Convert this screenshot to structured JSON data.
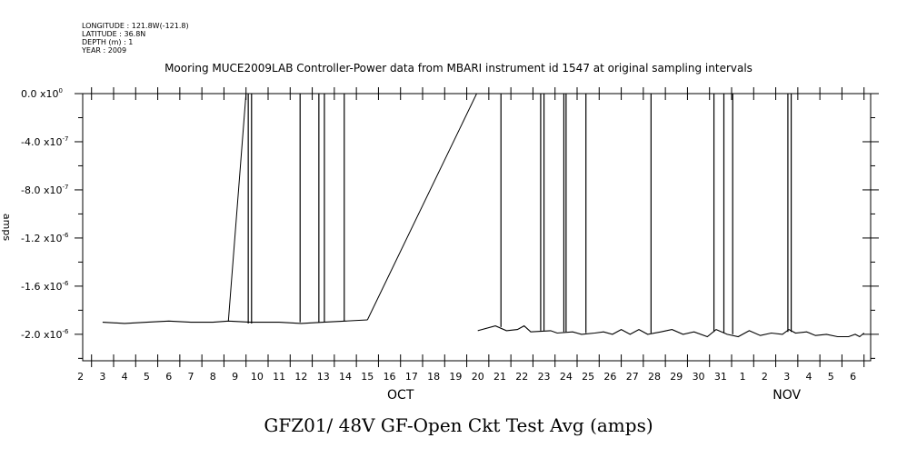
{
  "metadata": {
    "longitude": "LONGITUDE : 121.8W(-121.8)",
    "latitude": "LATITUDE : 36.8N",
    "depth": "DEPTH (m) : 1",
    "year": "YEAR : 2009"
  },
  "chart_data": {
    "type": "line",
    "title": "Mooring MUCE2009LAB Controller-Power data from MBARI instrument id 1547 at original sampling intervals",
    "xlabel": "GFZ01/ 48V GF-Open Ckt Test Avg (amps)",
    "ylabel": "amps",
    "x_tick_labels": [
      "2",
      "3",
      "4",
      "5",
      "6",
      "7",
      "8",
      "9",
      "10",
      "11",
      "12",
      "13",
      "14",
      "15",
      "16",
      "17",
      "18",
      "19",
      "20",
      "21",
      "22",
      "23",
      "24",
      "25",
      "26",
      "27",
      "28",
      "29",
      "30",
      "31",
      "1",
      "2",
      "3",
      "4",
      "5",
      "6"
    ],
    "month_labels": [
      {
        "label": "OCT",
        "x": 16.0
      },
      {
        "label": "NOV",
        "x": 33.5
      }
    ],
    "xlim": [
      1.6,
      37.3
    ],
    "x_units": "days since start of Oct 2009 (day 32 = Nov 1)",
    "ylim": [
      -2.22e-06,
      0
    ],
    "y_ticks": [
      {
        "value": 0,
        "mant": "0.0",
        "exp": "0"
      },
      {
        "value": -4e-07,
        "mant": "-4.0",
        "exp": "-7"
      },
      {
        "value": -8e-07,
        "mant": "-8.0",
        "exp": "-7"
      },
      {
        "value": -1.2e-06,
        "mant": "-1.2",
        "exp": "-6"
      },
      {
        "value": -1.6e-06,
        "mant": "-1.6",
        "exp": "-6"
      },
      {
        "value": -2e-06,
        "mant": "-2.0",
        "exp": "-6"
      }
    ],
    "series": [
      {
        "name": "GFZ01",
        "baseline": [
          [
            2.5,
            -1.9e-06
          ],
          [
            3.5,
            -1.91e-06
          ],
          [
            4.5,
            -1.9e-06
          ],
          [
            5.5,
            -1.89e-06
          ],
          [
            6.5,
            -1.9e-06
          ],
          [
            7.5,
            -1.9e-06
          ],
          [
            8.2,
            -1.89e-06
          ],
          [
            9.2,
            -1.9e-06
          ],
          [
            10.5,
            -1.9e-06
          ],
          [
            11.5,
            -1.91e-06
          ],
          [
            12.5,
            -1.9e-06
          ],
          [
            13.5,
            -1.89e-06
          ],
          [
            14.5,
            -1.88e-06
          ],
          [
            19.5,
            -1.97e-06
          ],
          [
            20.3,
            -1.93e-06
          ],
          [
            20.8,
            -1.97e-06
          ],
          [
            21.3,
            -1.96e-06
          ],
          [
            21.6,
            -1.93e-06
          ],
          [
            21.9,
            -1.98e-06
          ],
          [
            22.8,
            -1.97e-06
          ],
          [
            23.1,
            -1.99e-06
          ],
          [
            23.8,
            -1.98e-06
          ],
          [
            24.2,
            -2e-06
          ],
          [
            24.8,
            -1.99e-06
          ],
          [
            25.2,
            -1.98e-06
          ],
          [
            25.6,
            -2e-06
          ],
          [
            26.0,
            -1.96e-06
          ],
          [
            26.4,
            -2e-06
          ],
          [
            26.8,
            -1.96e-06
          ],
          [
            27.2,
            -2e-06
          ],
          [
            27.8,
            -1.98e-06
          ],
          [
            28.3,
            -1.96e-06
          ],
          [
            28.8,
            -2e-06
          ],
          [
            29.3,
            -1.98e-06
          ],
          [
            29.9,
            -2.02e-06
          ],
          [
            30.3,
            -1.96e-06
          ],
          [
            30.8,
            -2e-06
          ],
          [
            31.3,
            -2.02e-06
          ],
          [
            31.8,
            -1.97e-06
          ],
          [
            32.3,
            -2.01e-06
          ],
          [
            32.8,
            -1.99e-06
          ],
          [
            33.3,
            -2e-06
          ],
          [
            33.6,
            -1.96e-06
          ],
          [
            33.9,
            -1.99e-06
          ],
          [
            34.4,
            -1.98e-06
          ],
          [
            34.8,
            -2.01e-06
          ],
          [
            35.3,
            -2e-06
          ],
          [
            35.8,
            -2.02e-06
          ],
          [
            36.3,
            -2.02e-06
          ],
          [
            36.6,
            -2e-06
          ],
          [
            36.8,
            -2.02e-06
          ],
          [
            37.0,
            -1.99e-06
          ]
        ],
        "spikes": [
          {
            "x": 9.1,
            "low": -1.91e-06
          },
          {
            "x": 9.25,
            "low": -1.91e-06
          },
          {
            "x": 11.45,
            "low": -1.9e-06
          },
          {
            "x": 12.3,
            "low": -1.9e-06
          },
          {
            "x": 12.55,
            "low": -1.9e-06
          },
          {
            "x": 13.45,
            "low": -1.89e-06
          },
          {
            "x": 20.55,
            "low": -1.94e-06
          },
          {
            "x": 22.35,
            "low": -1.97e-06
          },
          {
            "x": 22.5,
            "low": -1.97e-06
          },
          {
            "x": 23.4,
            "low": -1.98e-06
          },
          {
            "x": 23.5,
            "low": -1.98e-06
          },
          {
            "x": 24.4,
            "low": -1.99e-06
          },
          {
            "x": 27.35,
            "low": -1.99e-06
          },
          {
            "x": 30.2,
            "low": -1.98e-06
          },
          {
            "x": 30.65,
            "low": -1.99e-06
          },
          {
            "x": 31.05,
            "low": -2e-06
          },
          {
            "x": 33.55,
            "low": -1.98e-06
          },
          {
            "x": 33.7,
            "low": -1.98e-06
          }
        ],
        "gap_lines": [
          [
            [
              8.2,
              -1.89e-06
            ],
            [
              9.0,
              0
            ]
          ],
          [
            [
              14.5,
              -1.88e-06
            ],
            [
              19.45,
              0
            ]
          ]
        ]
      }
    ]
  }
}
